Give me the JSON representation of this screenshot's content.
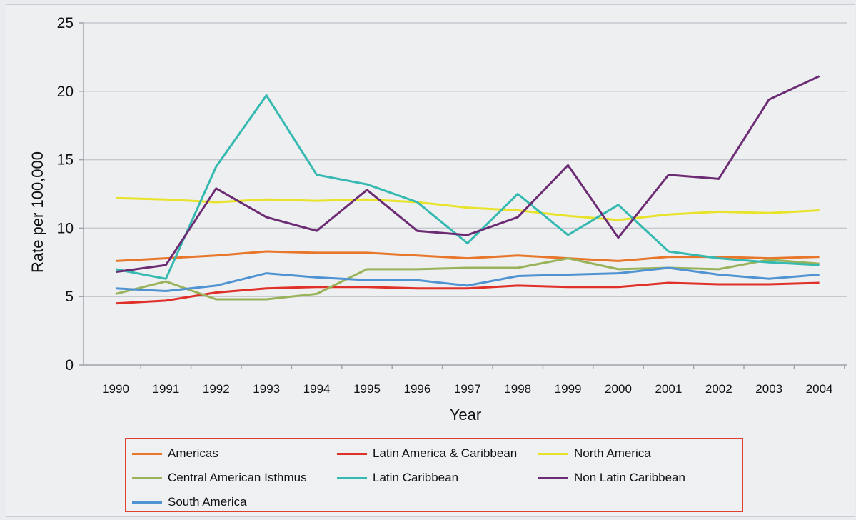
{
  "chart_data": {
    "type": "line",
    "xlabel": "Year",
    "ylabel": "Rate per 100,000",
    "ylim": [
      0,
      25
    ],
    "yticks": [
      0,
      5,
      10,
      15,
      20,
      25
    ],
    "categories": [
      "1990",
      "1991",
      "1992",
      "1993",
      "1994",
      "1995",
      "1996",
      "1997",
      "1998",
      "1999",
      "2000",
      "2001",
      "2002",
      "2003",
      "2004"
    ],
    "grid": true,
    "legend_position": "bottom",
    "series": [
      {
        "name": "Americas",
        "color": "#e8762b",
        "values": [
          7.6,
          7.8,
          8.0,
          8.3,
          8.2,
          8.2,
          8.0,
          7.8,
          8.0,
          7.8,
          7.6,
          7.9,
          7.9,
          7.8,
          7.9
        ]
      },
      {
        "name": "Latin America & Caribbean",
        "color": "#e0302a",
        "values": [
          4.5,
          4.7,
          5.3,
          5.6,
          5.7,
          5.7,
          5.6,
          5.6,
          5.8,
          5.7,
          5.7,
          6.0,
          5.9,
          5.9,
          6.0
        ]
      },
      {
        "name": "North America",
        "color": "#e8e32a",
        "values": [
          12.2,
          12.1,
          11.9,
          12.1,
          12.0,
          12.1,
          11.9,
          11.5,
          11.3,
          10.9,
          10.6,
          11.0,
          11.2,
          11.1,
          11.3
        ]
      },
      {
        "name": "Central American Isthmus",
        "color": "#98b35a",
        "values": [
          5.2,
          6.1,
          4.8,
          4.8,
          5.2,
          7.0,
          7.0,
          7.1,
          7.1,
          7.8,
          7.0,
          7.1,
          7.0,
          7.7,
          7.4
        ]
      },
      {
        "name": "Latin Caribbean",
        "color": "#35b9b0",
        "values": [
          7.0,
          6.3,
          14.5,
          19.7,
          13.9,
          13.2,
          11.9,
          8.9,
          12.5,
          9.5,
          11.7,
          8.3,
          7.8,
          7.5,
          7.3
        ]
      },
      {
        "name": "Non Latin Caribbean",
        "color": "#6c2c74",
        "values": [
          6.8,
          7.3,
          12.9,
          10.8,
          9.8,
          12.8,
          9.8,
          9.5,
          10.8,
          14.6,
          9.3,
          13.9,
          13.6,
          19.4,
          21.1
        ]
      },
      {
        "name": "South America",
        "color": "#4f93d2",
        "values": [
          5.6,
          5.4,
          5.8,
          6.7,
          6.4,
          6.2,
          6.2,
          5.8,
          6.5,
          6.6,
          6.7,
          7.1,
          6.6,
          6.3,
          6.6
        ]
      }
    ]
  }
}
